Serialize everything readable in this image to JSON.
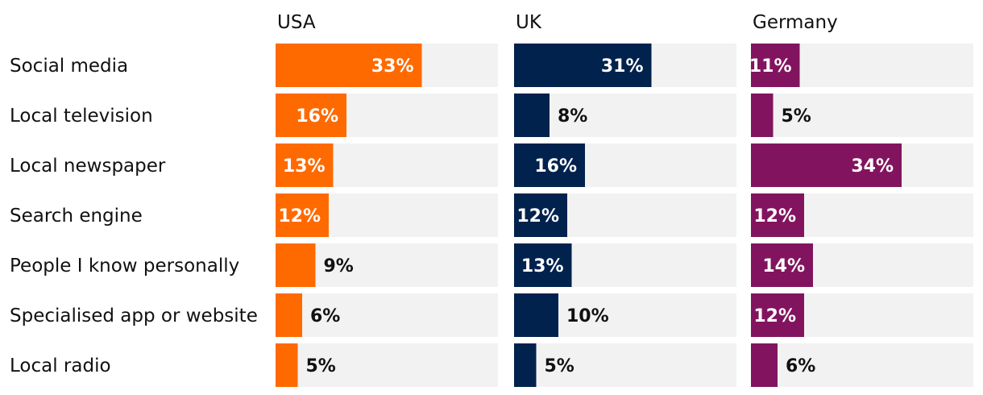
{
  "chart_data": {
    "type": "bar",
    "orientation": "horizontal",
    "xlim": [
      0,
      100
    ],
    "categories": [
      "Social media",
      "Local television",
      "Local newspaper",
      "Search engine",
      "People I know personally",
      "Specialised app or website",
      "Local radio"
    ],
    "series": [
      {
        "name": "USA",
        "values": [
          33,
          16,
          13,
          12,
          9,
          6,
          5
        ],
        "labels": [
          "33%",
          "16%",
          "13%",
          "12%",
          "9%",
          "6%",
          "5%"
        ],
        "color": "#ff6a00"
      },
      {
        "name": "UK",
        "values": [
          31,
          8,
          16,
          12,
          13,
          10,
          5
        ],
        "labels": [
          "31%",
          "8%",
          "16%",
          "12%",
          "13%",
          "10%",
          "5%"
        ],
        "color": "#00224d"
      },
      {
        "name": "Germany",
        "values": [
          11,
          5,
          34,
          12,
          14,
          12,
          6
        ],
        "labels": [
          "11%",
          "5%",
          "34%",
          "12%",
          "14%",
          "12%",
          "6%"
        ],
        "color": "#82145f"
      }
    ],
    "track_color": "#f2f2f2",
    "grid": false,
    "legend": "none"
  }
}
